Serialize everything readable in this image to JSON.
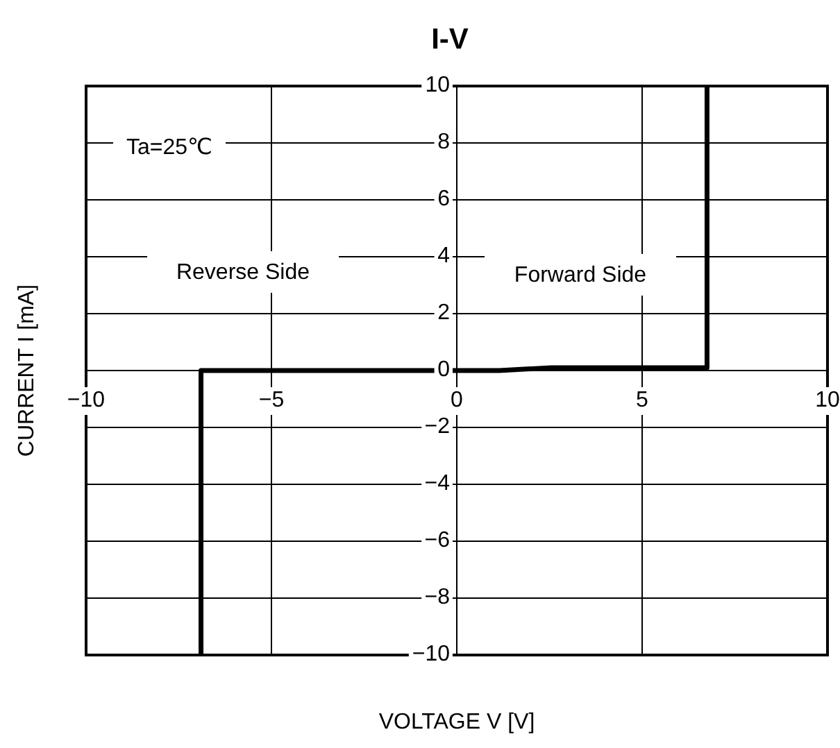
{
  "chart_data": {
    "type": "line",
    "title": "I-V",
    "xlabel": "VOLTAGE  V [V]",
    "ylabel": "CURRENT  I [mA]",
    "x": [
      -6.9,
      -6.9,
      1.15,
      2.55,
      6.75,
      6.75
    ],
    "series": [
      {
        "color": "#000000",
        "values": [
          -10,
          0,
          0,
          0.1,
          0.1,
          10
        ]
      }
    ],
    "xlim": [
      -10,
      10
    ],
    "xticks": [
      {
        "value": -10,
        "label": "−10"
      },
      {
        "value": -5,
        "label": "−5"
      },
      0,
      5,
      10
    ],
    "ylim": [
      -10,
      10
    ],
    "yticks": [
      {
        "value": -10,
        "label": "−10"
      },
      {
        "value": -8,
        "label": "−8"
      },
      {
        "value": -6,
        "label": "−6"
      },
      {
        "value": -4,
        "label": "−4"
      },
      {
        "value": -2,
        "label": "−2"
      },
      0,
      2,
      4,
      6,
      8,
      10
    ],
    "grid": true,
    "marker": "none",
    "line_style": "solid",
    "annotations": [
      "Ta=25℃",
      "Reverse Side",
      "Forward Side"
    ]
  }
}
